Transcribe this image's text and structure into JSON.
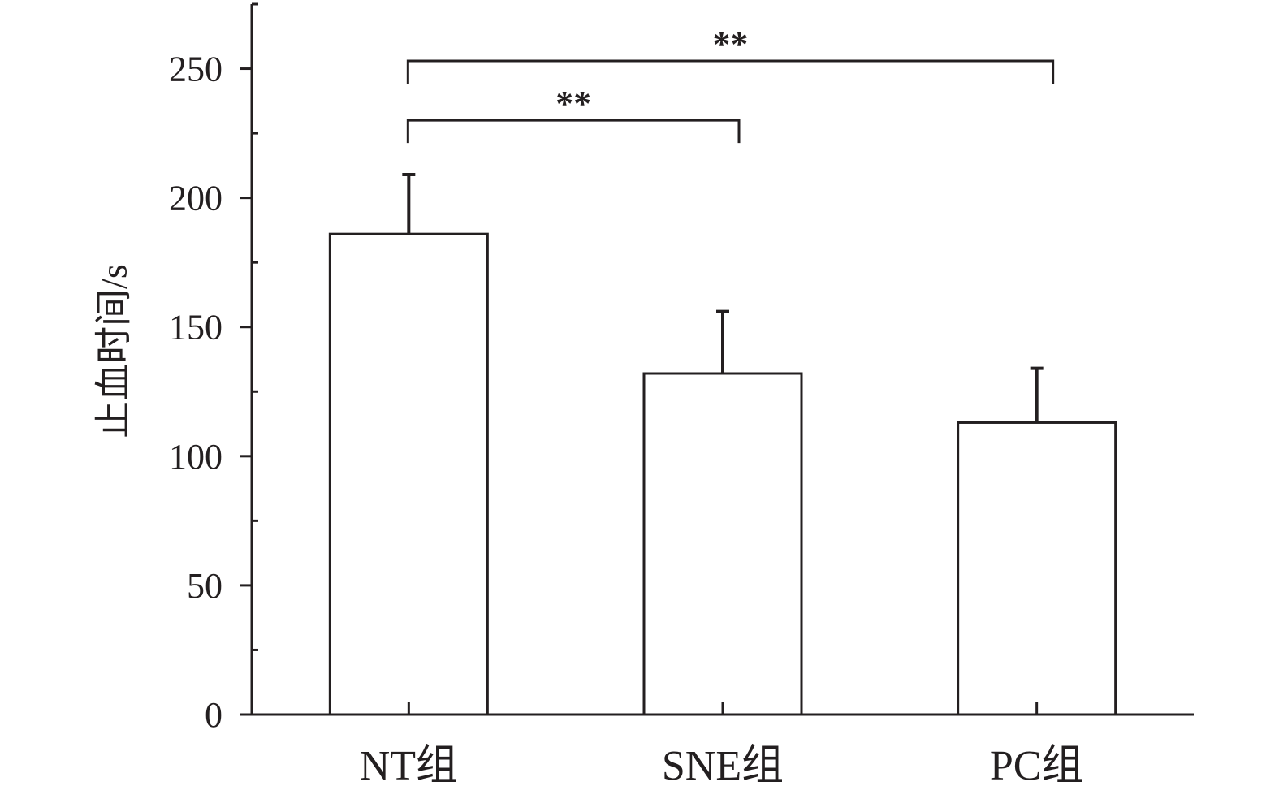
{
  "chart_data": {
    "type": "bar",
    "categories": [
      "NT组",
      "SNE组",
      "PC组"
    ],
    "values": [
      186,
      132,
      113
    ],
    "error_plus": [
      23,
      24,
      21
    ],
    "ylabel": "止血时间/s",
    "xlabel": "",
    "ylim": [
      0,
      275
    ],
    "yticks": [
      0,
      50,
      100,
      150,
      200,
      250
    ],
    "y_minor_step": 25,
    "grid": false,
    "bar_fill": "#ffffff",
    "line_color": "#231f20",
    "significance": [
      {
        "from": 0,
        "to": 1,
        "label": "**",
        "y": 230
      },
      {
        "from": 0,
        "to": 2,
        "label": "**",
        "y": 253
      }
    ]
  }
}
